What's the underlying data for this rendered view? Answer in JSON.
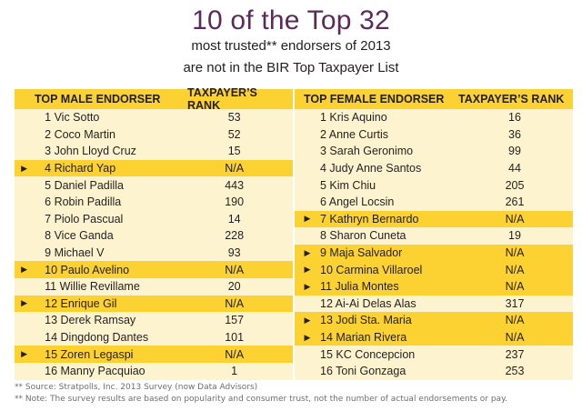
{
  "title": "10 of the Top 32",
  "subtitle_line1": "most trusted** endorsers of 2013",
  "subtitle_line2": "are not in the BIR Top Taxpayer List",
  "male": {
    "header_name": "TOP MALE ENDORSER",
    "header_rank": "TAXPAYER’S RANK",
    "rows": [
      {
        "label": "1 Vic Sotto",
        "rank": "53",
        "highlight": false
      },
      {
        "label": "2 Coco Martin",
        "rank": "52",
        "highlight": false
      },
      {
        "label": "3 John Lloyd Cruz",
        "rank": "15",
        "highlight": false
      },
      {
        "label": "4 Richard Yap",
        "rank": "N/A",
        "highlight": true
      },
      {
        "label": "5 Daniel Padilla",
        "rank": "443",
        "highlight": false
      },
      {
        "label": "6 Robin Padilla",
        "rank": "190",
        "highlight": false
      },
      {
        "label": "7 Piolo Pascual",
        "rank": "14",
        "highlight": false
      },
      {
        "label": "8 Vice Ganda",
        "rank": "228",
        "highlight": false
      },
      {
        "label": "9 Michael V",
        "rank": "93",
        "highlight": false
      },
      {
        "label": "10 Paulo Avelino",
        "rank": "N/A",
        "highlight": true
      },
      {
        "label": "11 Willie Revillame",
        "rank": "20",
        "highlight": false
      },
      {
        "label": "12 Enrique Gil",
        "rank": "N/A",
        "highlight": true
      },
      {
        "label": "13 Derek Ramsay",
        "rank": "157",
        "highlight": false
      },
      {
        "label": "14 Dingdong Dantes",
        "rank": "101",
        "highlight": false
      },
      {
        "label": "15 Zoren Legaspi",
        "rank": "N/A",
        "highlight": true
      },
      {
        "label": "16 Manny Pacquiao",
        "rank": "1",
        "highlight": false
      }
    ]
  },
  "female": {
    "header_name": "TOP FEMALE ENDORSER",
    "header_rank": "TAXPAYER’S RANK",
    "rows": [
      {
        "label": "1 Kris Aquino",
        "rank": "16",
        "highlight": false
      },
      {
        "label": "2 Anne Curtis",
        "rank": "36",
        "highlight": false
      },
      {
        "label": "3 Sarah Geronimo",
        "rank": "99",
        "highlight": false
      },
      {
        "label": "4 Judy Anne Santos",
        "rank": "44",
        "highlight": false
      },
      {
        "label": "5 Kim Chiu",
        "rank": "205",
        "highlight": false
      },
      {
        "label": "6 Angel Locsin",
        "rank": "261",
        "highlight": false
      },
      {
        "label": "7 Kathryn Bernardo",
        "rank": "N/A",
        "highlight": true
      },
      {
        "label": "8 Sharon Cuneta",
        "rank": "19",
        "highlight": false
      },
      {
        "label": "9 Maja Salvador",
        "rank": "N/A",
        "highlight": true
      },
      {
        "label": "10 Carmina Villaroel",
        "rank": "N/A",
        "highlight": true
      },
      {
        "label": "11 Julia Montes",
        "rank": "N/A",
        "highlight": true
      },
      {
        "label": "12 Ai-Ai Delas Alas",
        "rank": "317",
        "highlight": false
      },
      {
        "label": "13 Jodi Sta. Maria",
        "rank": "N/A",
        "highlight": true
      },
      {
        "label": "14 Marian Rivera",
        "rank": "N/A",
        "highlight": true
      },
      {
        "label": "15 KC Concepcion",
        "rank": "237",
        "highlight": false
      },
      {
        "label": "16 Toni Gonzaga",
        "rank": "253",
        "highlight": false
      }
    ]
  },
  "footnote1": "** Source: Stratpolls, Inc. 2013 Survey (now Data Advisors)",
  "footnote2": "** Note: The survey results are based on popularity and consumer trust, not the number of actual endorsements or pay.",
  "colors": {
    "title": "#5b2a5a",
    "highlight": "#fcd232",
    "row_background": "#fdf4cf"
  },
  "icons": {
    "highlight_marker": "triangle-right-icon"
  }
}
